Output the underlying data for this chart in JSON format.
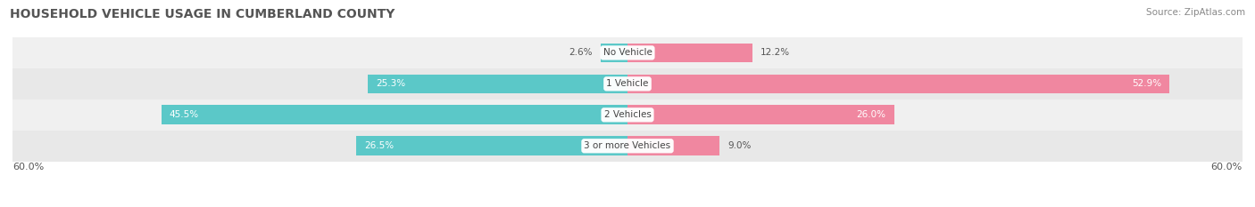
{
  "title": "HOUSEHOLD VEHICLE USAGE IN CUMBERLAND COUNTY",
  "source": "Source: ZipAtlas.com",
  "categories": [
    "No Vehicle",
    "1 Vehicle",
    "2 Vehicles",
    "3 or more Vehicles"
  ],
  "owner_values": [
    2.6,
    25.3,
    45.5,
    26.5
  ],
  "renter_values": [
    12.2,
    52.9,
    26.0,
    9.0
  ],
  "owner_color": "#5BC8C8",
  "renter_color": "#F087A0",
  "row_bg_colors": [
    "#F0F0F0",
    "#E8E8E8",
    "#F0F0F0",
    "#E8E8E8"
  ],
  "max_value": 60.0,
  "title_fontsize": 10,
  "source_fontsize": 7.5,
  "label_fontsize": 7.5,
  "category_fontsize": 7.5,
  "axis_label_fontsize": 8,
  "background_color": "#FFFFFF",
  "label_inside_color": "white",
  "label_outside_color": "#555555",
  "category_text_color": "#444444",
  "title_color": "#555555"
}
